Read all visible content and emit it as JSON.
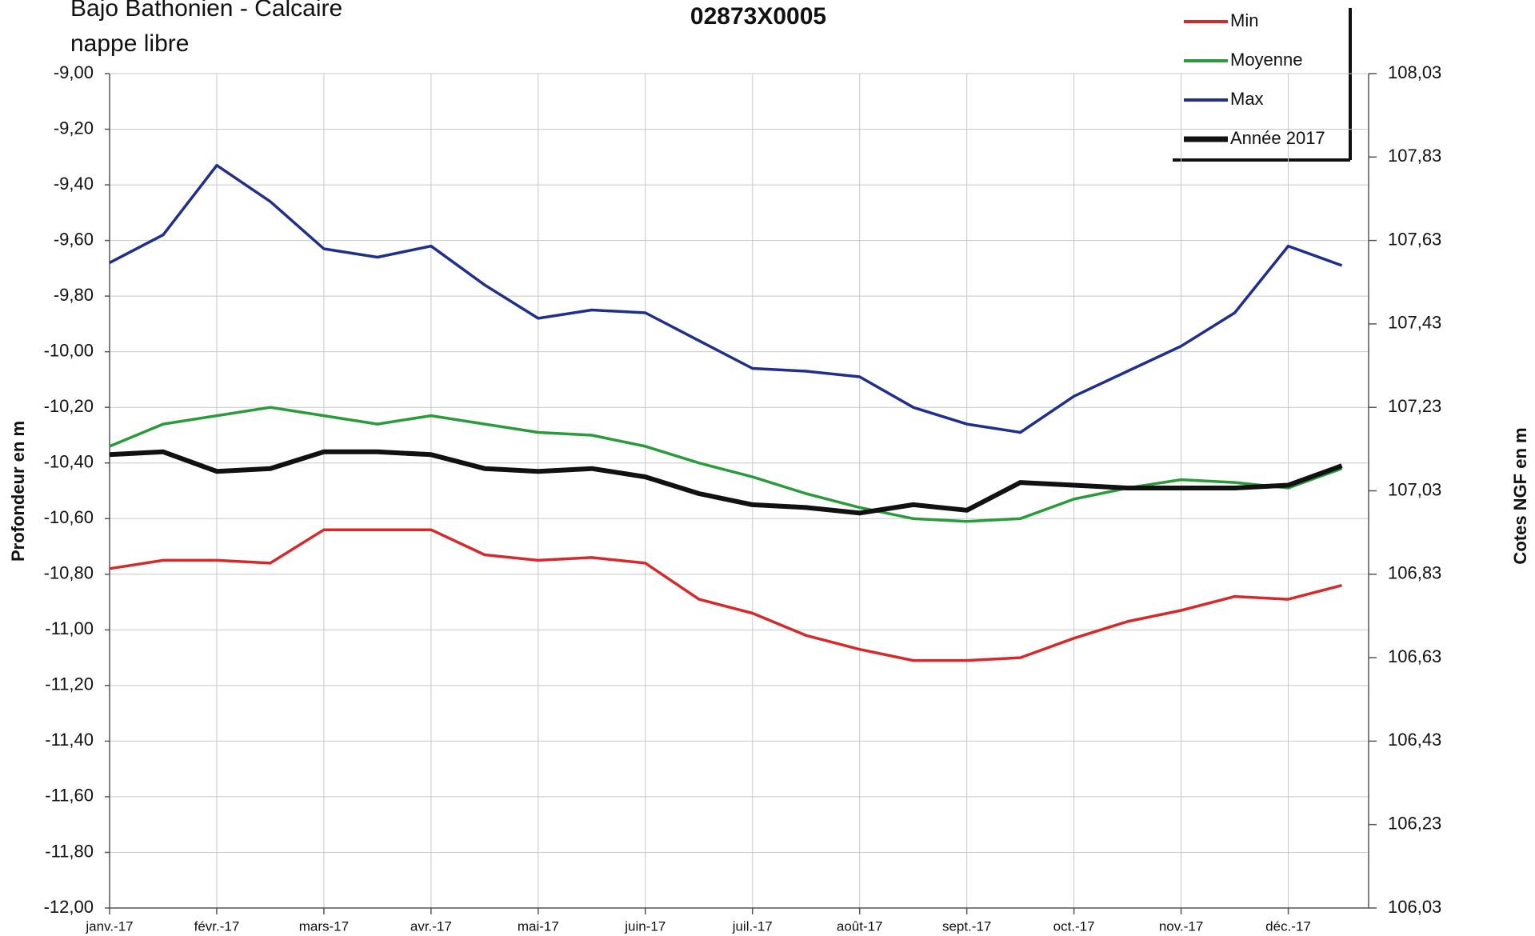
{
  "chart_data": {
    "type": "line",
    "title": "02873X0005",
    "subtitle": [
      "Bajo Bathonien - Calcaire",
      "nappe libre"
    ],
    "y_label": "Profondeur en m",
    "y2_label": "Cotes NGF en m",
    "categories": [
      "janv.-17",
      null,
      "févr.-17",
      null,
      "mars-17",
      null,
      "avr.-17",
      null,
      "mai-17",
      null,
      "juin-17",
      null,
      "juil.-17",
      null,
      "août-17",
      null,
      "sept.-17",
      null,
      "oct.-17",
      null,
      "nov.-17",
      null,
      "déc.-17",
      null
    ],
    "series": [
      {
        "name": "Min",
        "color": "#d62a2a",
        "values": [
          -10.78,
          -10.75,
          -10.75,
          -10.76,
          -10.64,
          -10.64,
          -10.64,
          -10.73,
          -10.75,
          -10.74,
          -10.76,
          -10.89,
          -10.94,
          -11.02,
          -11.07,
          -11.11,
          -11.11,
          -11.1,
          -11.03,
          -10.97,
          -10.93,
          -10.88,
          -10.89,
          -10.84
        ]
      },
      {
        "name": "Moyenne",
        "color": "#2a9a3a",
        "values": [
          -10.34,
          -10.26,
          -10.23,
          -10.2,
          -10.23,
          -10.26,
          -10.23,
          -10.26,
          -10.29,
          -10.3,
          -10.34,
          -10.4,
          -10.45,
          -10.51,
          -10.56,
          -10.6,
          -10.61,
          -10.6,
          -10.53,
          -10.49,
          -10.46,
          -10.47,
          -10.49,
          -10.42
        ]
      },
      {
        "name": "Max",
        "color": "#1f2f8a",
        "values": [
          -9.68,
          -9.58,
          -9.33,
          -9.46,
          -9.63,
          -9.66,
          -9.62,
          -9.76,
          -9.88,
          -9.85,
          -9.86,
          -9.96,
          -10.06,
          -10.07,
          -10.09,
          -10.2,
          -10.26,
          -10.29,
          -10.16,
          -10.07,
          -9.98,
          -9.86,
          -9.62,
          -9.69
        ]
      },
      {
        "name": "Année 2017",
        "color": "#111111",
        "values": [
          -10.37,
          -10.36,
          -10.43,
          -10.42,
          -10.36,
          -10.36,
          -10.37,
          -10.42,
          -10.43,
          -10.42,
          -10.45,
          -10.51,
          -10.55,
          -10.56,
          -10.58,
          -10.55,
          -10.57,
          -10.47,
          -10.48,
          -10.49,
          -10.49,
          -10.49,
          -10.48,
          -10.41
        ]
      }
    ],
    "ylim": [
      -12,
      -9
    ],
    "yticks": [
      {
        "value": -9,
        "label": "-9,00"
      },
      {
        "value": -9.2,
        "label": "-9,20"
      },
      {
        "value": -9.4,
        "label": "-9,40"
      },
      {
        "value": -9.6,
        "label": "-9,60"
      },
      {
        "value": -9.8,
        "label": "-9,80"
      },
      {
        "value": -10,
        "label": "-10,00"
      },
      {
        "value": -10.2,
        "label": "-10,20"
      },
      {
        "value": -10.4,
        "label": "-10,40"
      },
      {
        "value": -10.6,
        "label": "-10,60"
      },
      {
        "value": -10.8,
        "label": "-10,80"
      },
      {
        "value": -11,
        "label": "-11,00"
      },
      {
        "value": -11.2,
        "label": "-11,20"
      },
      {
        "value": -11.4,
        "label": "-11,40"
      },
      {
        "value": -11.6,
        "label": "-11,60"
      },
      {
        "value": -11.8,
        "label": "-11,80"
      },
      {
        "value": -12,
        "label": "-12,00"
      }
    ],
    "y2lim": [
      106.03,
      108.03
    ],
    "y2ticks": [
      {
        "value": 106.03,
        "label": "106,03"
      },
      {
        "value": 106.23,
        "label": "106,23"
      },
      {
        "value": 106.43,
        "label": "106,43"
      },
      {
        "value": 106.63,
        "label": "106,63"
      },
      {
        "value": 106.83,
        "label": "106,83"
      },
      {
        "value": 107.03,
        "label": "107,03"
      },
      {
        "value": 107.23,
        "label": "107,23"
      },
      {
        "value": 107.43,
        "label": "107,43"
      },
      {
        "value": 107.63,
        "label": "107,63"
      },
      {
        "value": 107.83,
        "label": "107,83"
      },
      {
        "value": 108.03,
        "label": "108,03"
      }
    ],
    "grid": true,
    "legend": "top-right"
  }
}
